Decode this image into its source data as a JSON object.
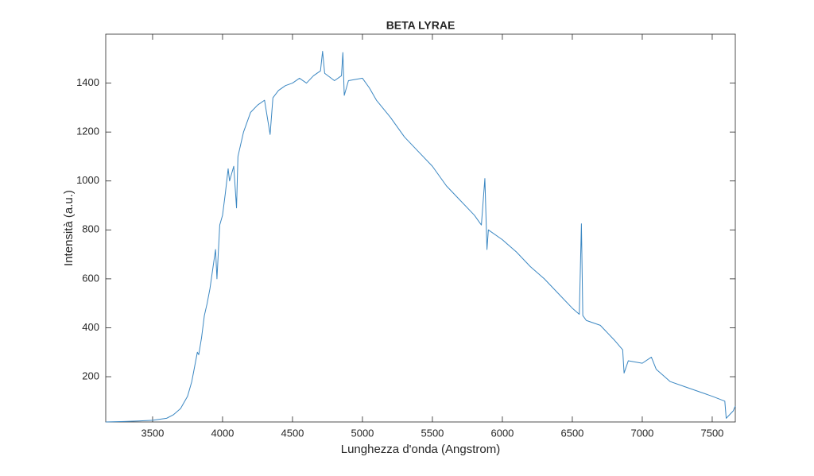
{
  "chart_data": {
    "type": "line",
    "title": "BETA LYRAE",
    "x_label": "Lunghezza d'onda (Angstrom)",
    "y_label": "Intensità (a.u.)",
    "x": [
      3165,
      3300,
      3400,
      3500,
      3600,
      3650,
      3700,
      3750,
      3780,
      3800,
      3820,
      3830,
      3850,
      3870,
      3890,
      3910,
      3930,
      3950,
      3960,
      3980,
      4000,
      4020,
      4040,
      4050,
      4080,
      4100,
      4110,
      4150,
      4200,
      4250,
      4300,
      4340,
      4360,
      4400,
      4450,
      4500,
      4550,
      4600,
      4650,
      4700,
      4715,
      4730,
      4800,
      4850,
      4860,
      4870,
      4900,
      5000,
      5050,
      5100,
      5200,
      5300,
      5400,
      5500,
      5600,
      5700,
      5800,
      5850,
      5875,
      5890,
      5900,
      6000,
      6100,
      6200,
      6300,
      6400,
      6500,
      6550,
      6565,
      6575,
      6600,
      6700,
      6800,
      6860,
      6870,
      6900,
      7000,
      7065,
      7100,
      7200,
      7300,
      7400,
      7500,
      7590,
      7600,
      7650,
      7665
    ],
    "series": [
      {
        "name": "Beta Lyrae",
        "color": "#3b87c2",
        "values": [
          15,
          17,
          19,
          22,
          30,
          45,
          70,
          120,
          180,
          240,
          300,
          290,
          360,
          450,
          500,
          560,
          640,
          720,
          600,
          820,
          860,
          950,
          1050,
          1000,
          1060,
          890,
          1100,
          1200,
          1280,
          1310,
          1330,
          1190,
          1340,
          1370,
          1390,
          1400,
          1420,
          1400,
          1430,
          1450,
          1530,
          1440,
          1410,
          1430,
          1525,
          1350,
          1410,
          1420,
          1380,
          1330,
          1260,
          1180,
          1120,
          1060,
          980,
          920,
          860,
          820,
          1010,
          720,
          800,
          760,
          710,
          650,
          600,
          540,
          480,
          455,
          825,
          450,
          430,
          410,
          350,
          310,
          215,
          265,
          255,
          280,
          230,
          180,
          160,
          140,
          120,
          100,
          30,
          60,
          80
        ]
      }
    ],
    "xlim": [
      3165,
      7665
    ],
    "ylim": [
      15,
      1600
    ],
    "xticks": [
      3500,
      4000,
      4500,
      5000,
      5500,
      6000,
      6500,
      7000,
      7500
    ],
    "yticks": [
      200,
      400,
      600,
      800,
      1000,
      1200,
      1400
    ]
  }
}
